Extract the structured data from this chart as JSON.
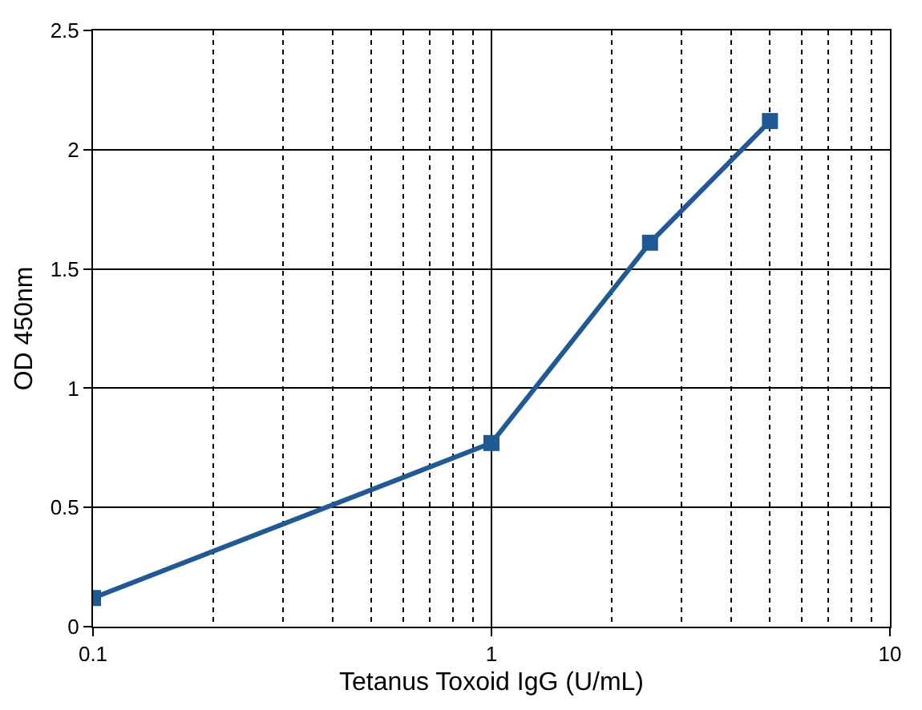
{
  "chart_data": {
    "type": "line",
    "xlabel": "Tetanus Toxoid IgG (U/mL)",
    "ylabel": "OD 450nm",
    "x": [
      0.1,
      1,
      2.5,
      5
    ],
    "series": [
      {
        "color": "#1f5a96",
        "values": [
          0.12,
          0.77,
          1.61,
          2.12
        ]
      }
    ],
    "log": "x",
    "xlim": [
      0.1,
      10
    ],
    "xticks": [
      0.1,
      1,
      10
    ],
    "ylim": [
      0,
      2.5
    ],
    "yticks": [
      0,
      0.5,
      1,
      1.5,
      2,
      2.5
    ],
    "grid": true,
    "legend": false,
    "marker": "square",
    "line_style": "solid"
  }
}
